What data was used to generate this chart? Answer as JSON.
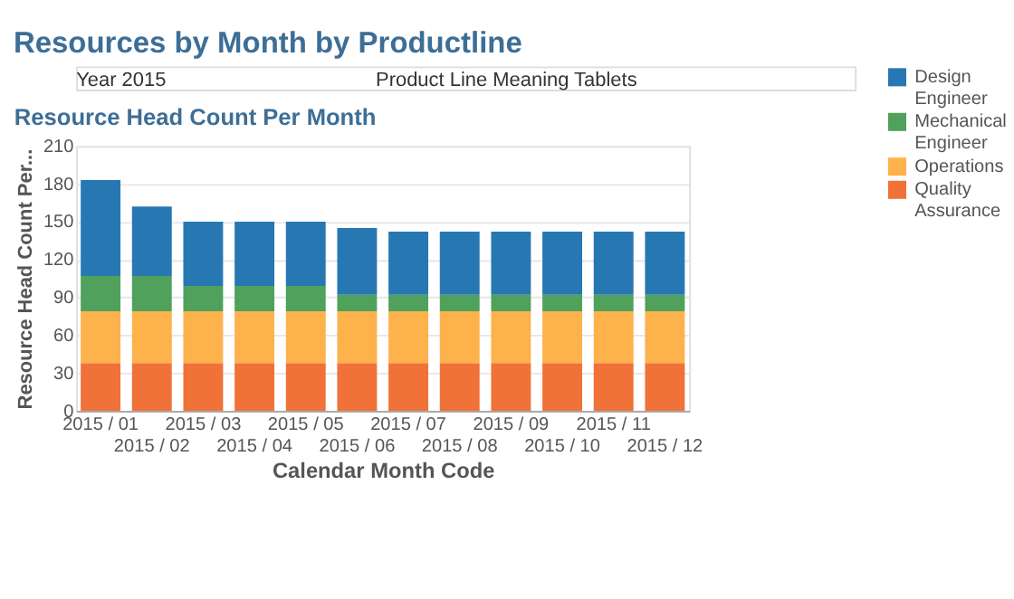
{
  "chart_data": {
    "type": "bar",
    "title": "Resources by Month by Productline",
    "subtitle": "Resource Head Count Per Month",
    "annotations": [
      "Year 2015",
      "Product Line Meaning Tablets"
    ],
    "xlabel": "Calendar Month Code",
    "ylabel": "Resource Head Count Per...",
    "categories": [
      "2015 / 01",
      "2015 / 02",
      "2015 / 03",
      "2015 / 04",
      "2015 / 05",
      "2015 / 06",
      "2015 / 07",
      "2015 / 08",
      "2015 / 09",
      "2015 / 10",
      "2015 / 11",
      "2015 / 12"
    ],
    "stacked": true,
    "series": [
      {
        "name": "Quality Assurance",
        "color": "#f07238",
        "values": [
          38,
          38,
          38,
          38,
          38,
          38,
          38,
          38,
          38,
          38,
          38,
          38
        ]
      },
      {
        "name": "Operations",
        "color": "#fdb24c",
        "values": [
          41,
          41,
          41,
          41,
          41,
          41,
          41,
          41,
          41,
          41,
          41,
          41
        ]
      },
      {
        "name": "Mechanical Engineer",
        "color": "#4fa15c",
        "values": [
          28,
          28,
          20,
          20,
          20,
          13,
          13,
          13,
          13,
          13,
          13,
          13
        ]
      },
      {
        "name": "Design Engineer",
        "color": "#2778b2",
        "values": [
          76,
          55,
          51,
          51,
          51,
          53,
          50,
          50,
          50,
          50,
          50,
          50
        ]
      }
    ],
    "ylim": [
      0,
      210
    ],
    "yticks": [
      0,
      30,
      60,
      90,
      120,
      150,
      180,
      210
    ],
    "grid": "y",
    "legend": "right"
  }
}
